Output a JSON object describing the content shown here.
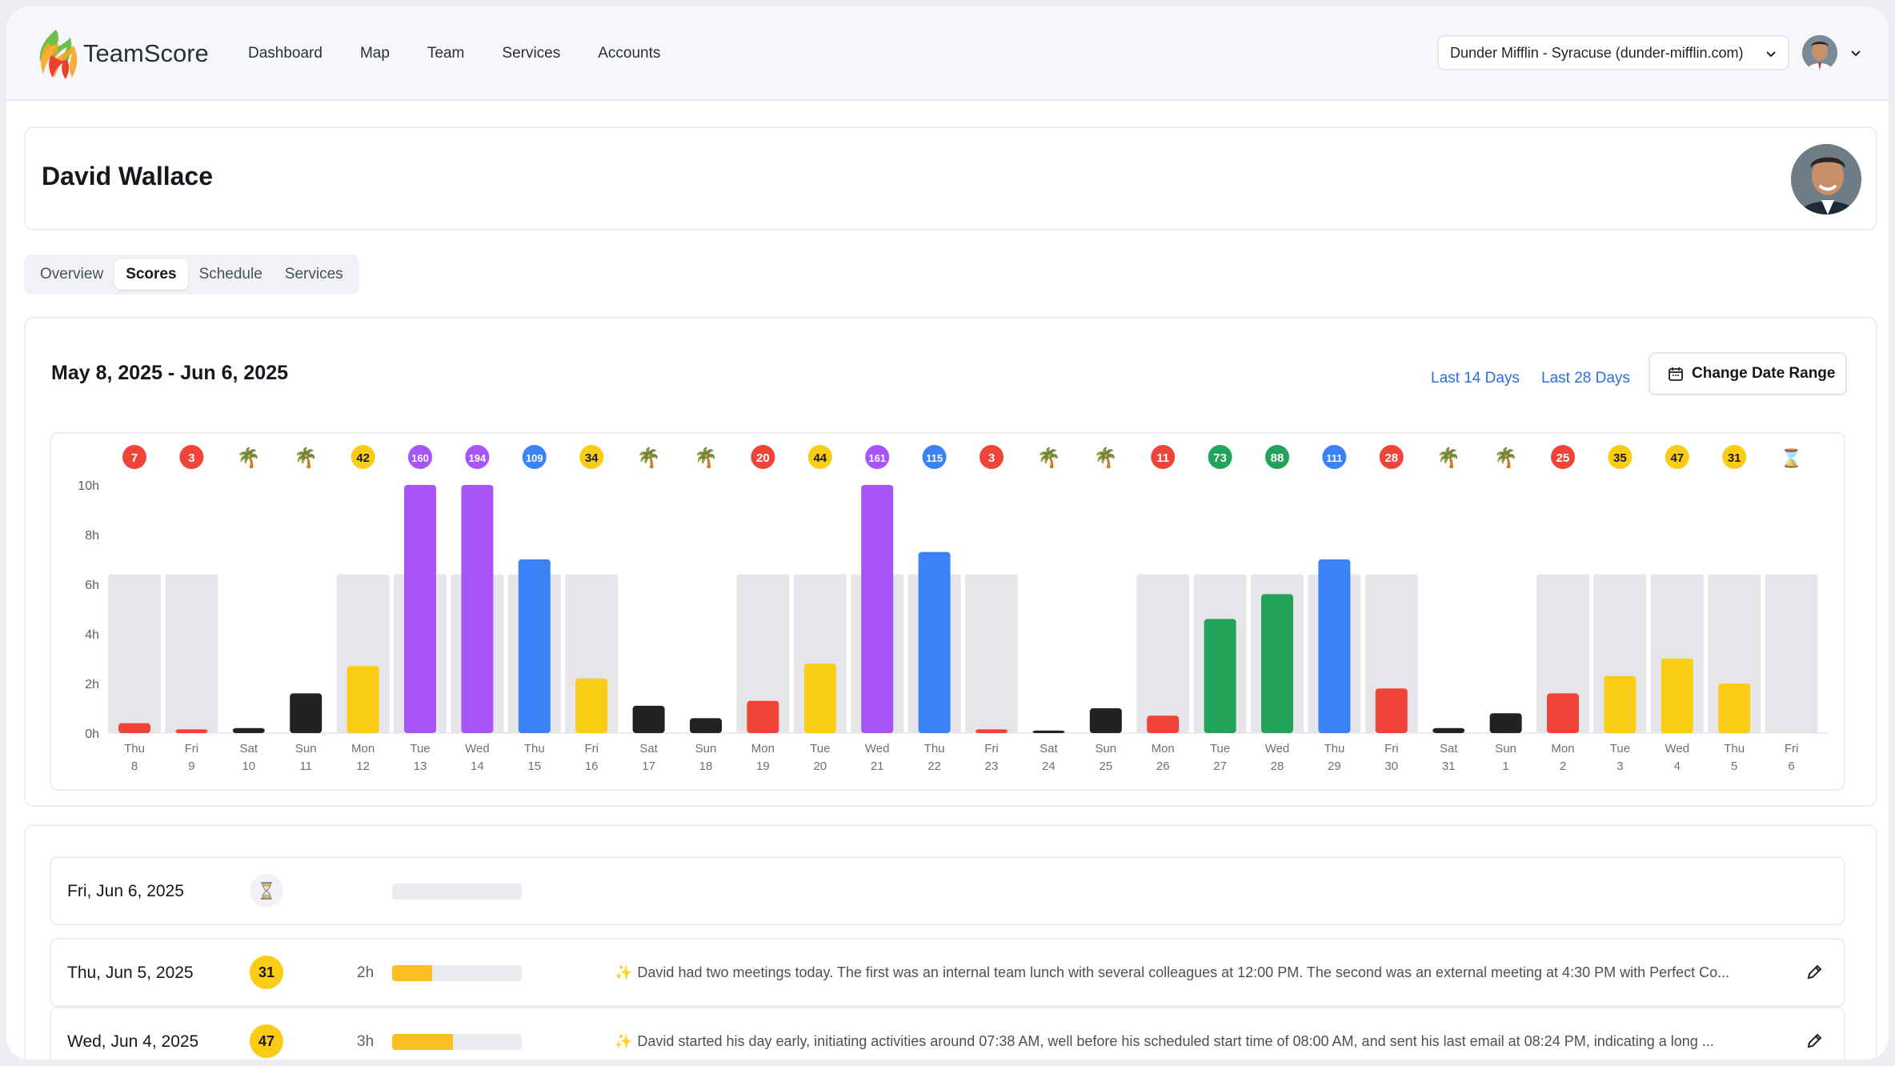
{
  "app": {
    "name": "TeamScore"
  },
  "nav": [
    "Dashboard",
    "Map",
    "Team",
    "Services",
    "Accounts"
  ],
  "org_select": {
    "value": "Dunder Mifflin - Syracuse (dunder-mifflin.com)"
  },
  "profile": {
    "name": "David Wallace"
  },
  "tabs": [
    {
      "label": "Overview",
      "active": false
    },
    {
      "label": "Scores",
      "active": true
    },
    {
      "label": "Schedule",
      "active": false
    },
    {
      "label": "Services",
      "active": false
    }
  ],
  "range": {
    "title": "May 8, 2025 - Jun 6, 2025",
    "last14": "Last 14 Days",
    "last28": "Last 28 Days",
    "change": "Change Date Range"
  },
  "colors": {
    "red": "#f04438",
    "yellow": "#facc15",
    "purple": "#a855f7",
    "blue": "#3b82f6",
    "green": "#22a35a",
    "black": "#222222",
    "target": "#e6e6ea",
    "link": "#2f6fe0"
  },
  "chart_data": {
    "type": "bar",
    "ylabel": "",
    "y_ticks": [
      "0h",
      "2h",
      "4h",
      "6h",
      "8h",
      "10h"
    ],
    "ylim": [
      0,
      10
    ],
    "target_hours": 6.4,
    "days": [
      {
        "dow": "Thu",
        "day": "8",
        "hours": 0.4,
        "score": "7",
        "color": "red",
        "target": true
      },
      {
        "dow": "Fri",
        "day": "9",
        "hours": 0.15,
        "score": "3",
        "color": "red",
        "target": true
      },
      {
        "dow": "Sat",
        "day": "10",
        "hours": 0.2,
        "score": "palm",
        "color": "black",
        "target": false
      },
      {
        "dow": "Sun",
        "day": "11",
        "hours": 1.6,
        "score": "palm",
        "color": "black",
        "target": false
      },
      {
        "dow": "Mon",
        "day": "12",
        "hours": 2.7,
        "score": "42",
        "color": "yellow",
        "target": true
      },
      {
        "dow": "Tue",
        "day": "13",
        "hours": 10,
        "score": "160",
        "color": "purple",
        "target": true
      },
      {
        "dow": "Wed",
        "day": "14",
        "hours": 10,
        "score": "194",
        "color": "purple",
        "target": true
      },
      {
        "dow": "Thu",
        "day": "15",
        "hours": 7,
        "score": "109",
        "color": "blue",
        "target": true
      },
      {
        "dow": "Fri",
        "day": "16",
        "hours": 2.2,
        "score": "34",
        "color": "yellow",
        "target": true
      },
      {
        "dow": "Sat",
        "day": "17",
        "hours": 1.1,
        "score": "palm",
        "color": "black",
        "target": false
      },
      {
        "dow": "Sun",
        "day": "18",
        "hours": 0.6,
        "score": "palm",
        "color": "black",
        "target": false
      },
      {
        "dow": "Mon",
        "day": "19",
        "hours": 1.3,
        "score": "20",
        "color": "red",
        "target": true
      },
      {
        "dow": "Tue",
        "day": "20",
        "hours": 2.8,
        "score": "44",
        "color": "yellow",
        "target": true
      },
      {
        "dow": "Wed",
        "day": "21",
        "hours": 10,
        "score": "161",
        "color": "purple",
        "target": true
      },
      {
        "dow": "Thu",
        "day": "22",
        "hours": 7.3,
        "score": "115",
        "color": "blue",
        "target": true
      },
      {
        "dow": "Fri",
        "day": "23",
        "hours": 0.15,
        "score": "3",
        "color": "red",
        "target": true
      },
      {
        "dow": "Sat",
        "day": "24",
        "hours": 0.1,
        "score": "palm",
        "color": "black",
        "target": false
      },
      {
        "dow": "Sun",
        "day": "25",
        "hours": 1.0,
        "score": "palm",
        "color": "black",
        "target": false
      },
      {
        "dow": "Mon",
        "day": "26",
        "hours": 0.7,
        "score": "11",
        "color": "red",
        "target": true
      },
      {
        "dow": "Tue",
        "day": "27",
        "hours": 4.6,
        "score": "73",
        "color": "green",
        "target": true
      },
      {
        "dow": "Wed",
        "day": "28",
        "hours": 5.6,
        "score": "88",
        "color": "green",
        "target": true
      },
      {
        "dow": "Thu",
        "day": "29",
        "hours": 7.0,
        "score": "111",
        "color": "blue",
        "target": true
      },
      {
        "dow": "Fri",
        "day": "30",
        "hours": 1.8,
        "score": "28",
        "color": "red",
        "target": true
      },
      {
        "dow": "Sat",
        "day": "31",
        "hours": 0.2,
        "score": "palm",
        "color": "black",
        "target": false
      },
      {
        "dow": "Sun",
        "day": "1",
        "hours": 0.8,
        "score": "palm",
        "color": "black",
        "target": false
      },
      {
        "dow": "Mon",
        "day": "2",
        "hours": 1.6,
        "score": "25",
        "color": "red",
        "target": true
      },
      {
        "dow": "Tue",
        "day": "3",
        "hours": 2.3,
        "score": "35",
        "color": "yellow",
        "target": true
      },
      {
        "dow": "Wed",
        "day": "4",
        "hours": 3.0,
        "score": "47",
        "color": "yellow",
        "target": true
      },
      {
        "dow": "Thu",
        "day": "5",
        "hours": 2.0,
        "score": "31",
        "color": "yellow",
        "target": true
      },
      {
        "dow": "Fri",
        "day": "6",
        "hours": 0,
        "score": "hourglass",
        "color": "none",
        "target": true
      }
    ]
  },
  "rows": [
    {
      "date": "Fri, Jun 6, 2025",
      "badge": "hourglass",
      "hours": "",
      "fill": 0,
      "summary": ""
    },
    {
      "date": "Thu, Jun 5, 2025",
      "badge": "31",
      "hours": "2h",
      "fill": 0.31,
      "summary": "David had two meetings today. The first was an internal team lunch with several colleagues at 12:00 PM. The second was an external meeting at 4:30 PM with Perfect Co..."
    },
    {
      "date": "Wed, Jun 4, 2025",
      "badge": "47",
      "hours": "3h",
      "fill": 0.47,
      "summary": "David started his day early, initiating activities around 07:38 AM, well before his scheduled start time of 08:00 AM, and sent his last email at 08:24 PM, indicating a long ..."
    }
  ]
}
